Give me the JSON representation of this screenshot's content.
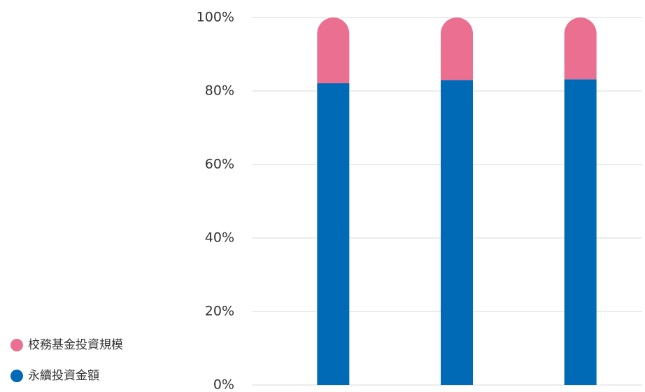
{
  "chart_data": {
    "type": "stacked-bar",
    "categories": [
      null,
      null,
      null
    ],
    "series": [
      {
        "name": "永續投資金額",
        "color": "#006ab7",
        "values": [
          82.1,
          83.0,
          83.2
        ]
      },
      {
        "name": "校務基金投資規模",
        "color": "#ea6f91",
        "values": [
          17.9,
          17.0,
          16.8
        ]
      }
    ],
    "ylim": [
      0,
      100
    ],
    "yticks": [
      {
        "value": 0,
        "label": "0%"
      },
      {
        "value": 20,
        "label": "20%"
      },
      {
        "value": 40,
        "label": "40%"
      },
      {
        "value": 60,
        "label": "60%"
      },
      {
        "value": 80,
        "label": "80%"
      },
      {
        "value": 100,
        "label": "100%"
      }
    ],
    "grid": true,
    "legend_position": "bottom-left"
  }
}
